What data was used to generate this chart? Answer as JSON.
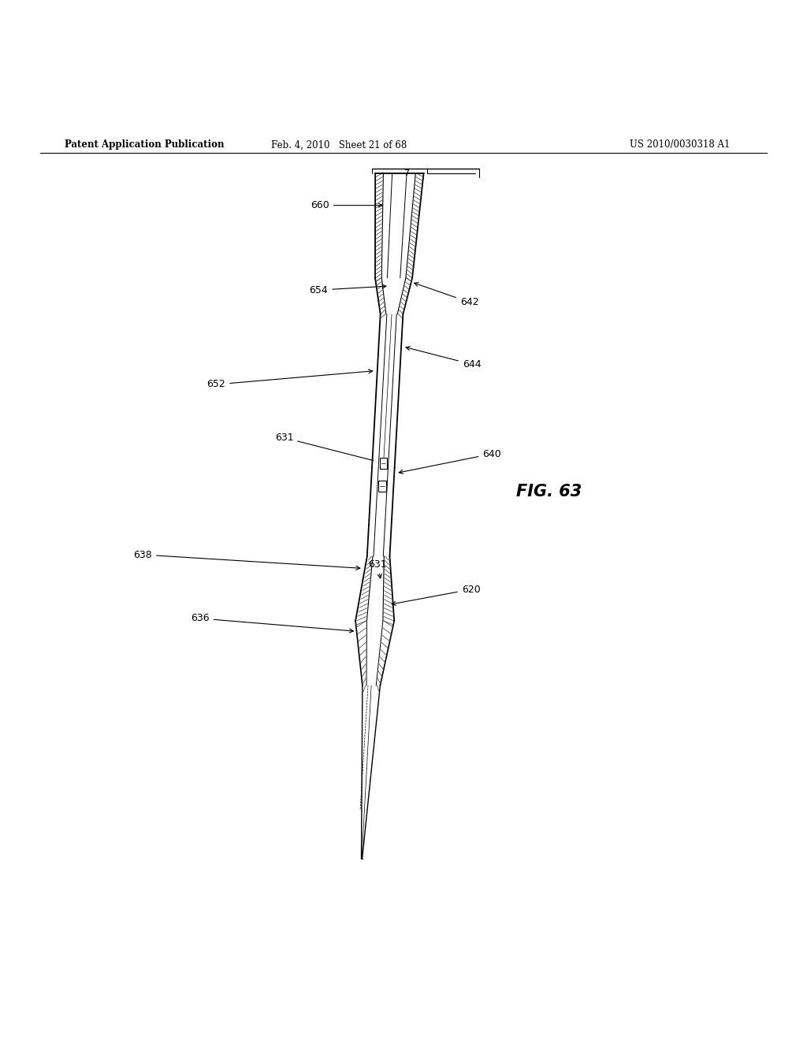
{
  "bg_color": "#ffffff",
  "header_left": "Patent Application Publication",
  "header_mid": "Feb. 4, 2010   Sheet 21 of 68",
  "header_right": "US 2010/0030318 A1",
  "fig_label": "FIG. 63"
}
